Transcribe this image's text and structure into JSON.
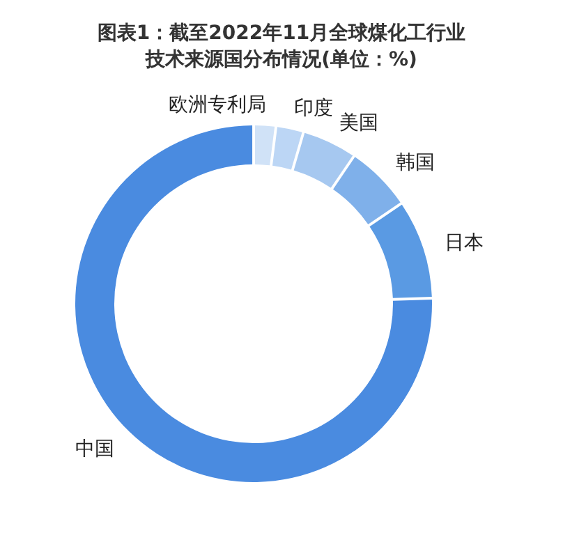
{
  "chart_data": {
    "type": "donut",
    "title": "图表1：截至2022年11月全球煤化工行业技术来源国分布情况(单位：%)",
    "categories": [
      "欧洲专利局",
      "印度",
      "美国",
      "韩国",
      "日本",
      "中国"
    ],
    "values": [
      2,
      2.5,
      5,
      6,
      9,
      75.5
    ],
    "colors": [
      "#d0e2f7",
      "#bcd6f5",
      "#a6c8f0",
      "#7fb0ea",
      "#5a9ae3",
      "#4a8be0"
    ]
  }
}
